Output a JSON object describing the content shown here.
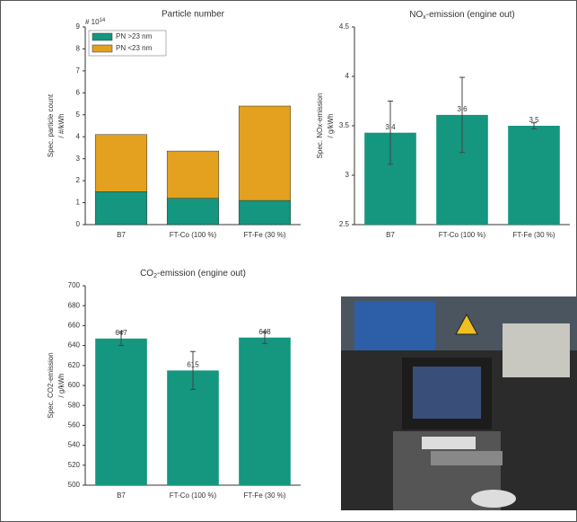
{
  "chart_data": [
    {
      "type": "stacked_bar",
      "title": "Particle number",
      "y_offset_base": "# 10",
      "y_offset_exponent": "14",
      "ylabel": [
        "Spec. particle count",
        "/ #/kWh"
      ],
      "categories": [
        "B7",
        "FT-Co (100 %)",
        "FT-Fe (30 %)"
      ],
      "series": [
        {
          "name": "PN >23 nm",
          "color": "#14967f",
          "values": [
            1.5,
            1.2,
            1.1
          ]
        },
        {
          "name": "PN <23 nm",
          "color": "#e3a11f",
          "values": [
            2.6,
            2.15,
            4.3
          ]
        }
      ],
      "ylim": [
        0,
        9
      ],
      "yticks": [
        0,
        1,
        2,
        3,
        4,
        5,
        6,
        7,
        8,
        9
      ],
      "legend": "upper-left"
    },
    {
      "type": "bar",
      "title_parts": [
        "NO",
        "x",
        "-emission (engine out)"
      ],
      "ylabel": [
        "Spec. NOx-emission",
        "/ g/kWh"
      ],
      "categories": [
        "B7",
        "FT-Co (100 %)",
        "FT-Fe (30 %)"
      ],
      "values": [
        3.43,
        3.61,
        3.5
      ],
      "value_labels": [
        "3.4",
        "3.6",
        "3.5"
      ],
      "errors": [
        0.32,
        0.38,
        0.03
      ],
      "color": "#14967f",
      "ylim": [
        2.5,
        4.5
      ],
      "yticks": [
        2.5,
        3,
        3.5,
        4,
        4.5
      ]
    },
    {
      "type": "bar",
      "title_parts": [
        "CO",
        "2",
        "-emission (engine out)"
      ],
      "ylabel": [
        "Spec. CO2-emission",
        "/ g/kWh"
      ],
      "categories": [
        "B7",
        "FT-Co (100 %)",
        "FT-Fe (30 %)"
      ],
      "values": [
        647,
        615,
        648
      ],
      "errors": [
        7,
        19,
        6
      ],
      "color": "#14967f",
      "ylim": [
        500,
        700
      ],
      "yticks": [
        500,
        520,
        540,
        560,
        580,
        600,
        620,
        640,
        660,
        680,
        700
      ]
    }
  ]
}
